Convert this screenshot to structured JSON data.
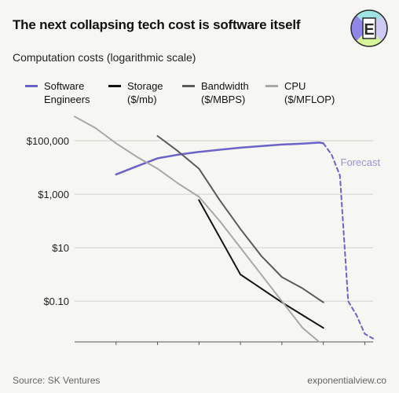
{
  "title": "The next collapsing tech cost is software itself",
  "logo": {
    "name": "exponential-view-logo",
    "letter": "E",
    "colors": [
      "#8f86e8",
      "#d7f59a",
      "#9fe3e3",
      "#2a2a2a"
    ]
  },
  "footer": {
    "source": "Source: SK Ventures",
    "site": "exponentialview.co"
  },
  "chart_data": {
    "type": "line",
    "subtitle": "Computation costs (logarithmic scale)",
    "y_scale": "log",
    "ylim": [
      0.003,
      1000000
    ],
    "y_ticks": [
      {
        "value": 100000,
        "label": "$100,000"
      },
      {
        "value": 1000,
        "label": "$1,000"
      },
      {
        "value": 10,
        "label": "$10"
      },
      {
        "value": 0.1,
        "label": "$0.10"
      }
    ],
    "xlim": [
      1960,
      2032
    ],
    "x_ticks": [
      1970,
      1980,
      1990,
      2000,
      2010,
      2020,
      2030
    ],
    "grid": "horizontal",
    "legend_position": "top",
    "series": [
      {
        "name": "Software\nEngineers",
        "color": "#6c63c9",
        "width": 2.5,
        "x": [
          1970,
          1975,
          1980,
          1985,
          1990,
          1995,
          2000,
          2005,
          2010,
          2015,
          2019,
          2020
        ],
        "y": [
          5500,
          11000,
          22000,
          30000,
          38000,
          46000,
          55000,
          63000,
          72000,
          78000,
          85000,
          80000
        ]
      },
      {
        "name": "Forecast",
        "color": "#6c63c9",
        "width": 2,
        "dashed": true,
        "label": "Forecast",
        "x": [
          2020,
          2022,
          2024,
          2026,
          2028,
          2030,
          2032
        ],
        "y": [
          80000,
          30000,
          5000,
          0.1,
          0.03,
          0.006,
          0.004
        ]
      },
      {
        "name": "Storage\n($/mb)",
        "color": "#111111",
        "width": 2,
        "x": [
          1990,
          2000,
          2005,
          2010,
          2015,
          2020
        ],
        "y": [
          600,
          1.0,
          0.3,
          0.09,
          0.03,
          0.01
        ]
      },
      {
        "name": "Bandwidth\n($/MBPS)",
        "color": "#5a5a5a",
        "width": 2,
        "x": [
          1980,
          1985,
          1990,
          1995,
          2000,
          2005,
          2010,
          2015,
          2020
        ],
        "y": [
          150000,
          40000,
          9000,
          600,
          50,
          5,
          0.8,
          0.3,
          0.09
        ]
      },
      {
        "name": "CPU\n($/MFLOP)",
        "color": "#a8a8a8",
        "width": 2,
        "x": [
          1960,
          1965,
          1970,
          1975,
          1980,
          1985,
          1990,
          1995,
          2000,
          2005,
          2010,
          2015,
          2019
        ],
        "y": [
          800000,
          300000,
          80000,
          25000,
          9000,
          2500,
          800,
          100,
          10,
          1,
          0.1,
          0.01,
          0.003
        ]
      }
    ]
  }
}
